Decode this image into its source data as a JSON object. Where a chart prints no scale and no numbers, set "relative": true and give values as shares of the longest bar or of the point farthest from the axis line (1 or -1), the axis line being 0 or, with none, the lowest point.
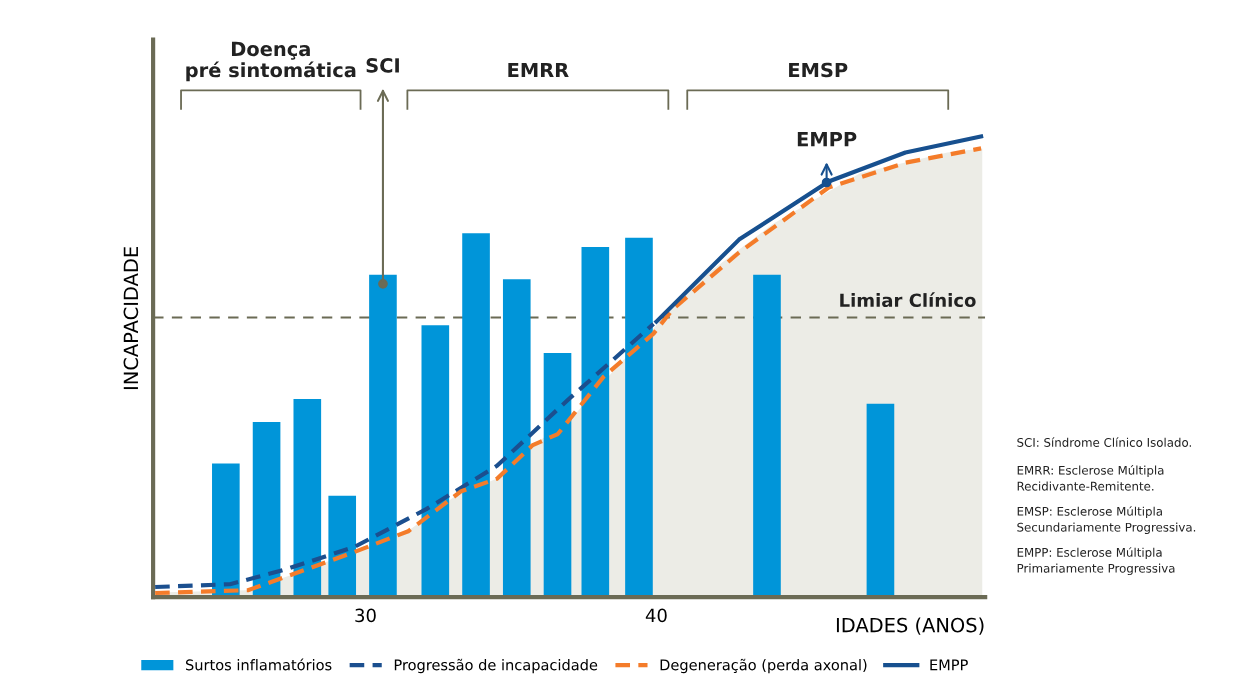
{
  "chart_data": {
    "type": "bar",
    "relative": true,
    "xlabel": "IDADES (ANOS)",
    "ylabel": "INCAPACIDADE",
    "xlim": [
      22.7,
      51.3
    ],
    "xticks": [
      30,
      40
    ],
    "legend": "bottom",
    "series": [
      {
        "name": "Surtos inflamatórios",
        "color": "#0095d9",
        "x": [
          25.2,
          26.6,
          28.0,
          29.2,
          30.6,
          32.4,
          33.8,
          35.2,
          36.6,
          37.9,
          39.4,
          43.8,
          47.7
        ],
        "values": [
          0.29,
          0.38,
          0.43,
          0.22,
          0.7,
          0.59,
          0.79,
          0.69,
          0.53,
          0.76,
          0.78,
          0.7,
          0.42
        ]
      },
      {
        "type": "line",
        "name": "Progressão de incapacidade",
        "color": "#1b4f8f",
        "line_style": "dashed",
        "x": [
          22.77,
          25.34,
          27.19,
          29.62,
          32.09,
          34.52,
          36.99,
          39.9
        ],
        "values": [
          0.022,
          0.028,
          0.059,
          0.109,
          0.191,
          0.285,
          0.43,
          0.593
        ]
      },
      {
        "type": "line",
        "name": "Degeneração (perda axonal)",
        "color": "#f47c2a",
        "line_style": "dashed",
        "x": [
          22.77,
          25.96,
          27.43,
          29.62,
          31.47,
          33.29,
          34.52,
          35.75,
          36.61,
          38.18,
          39.9,
          40.55,
          42.84,
          45.92,
          48.56,
          51.16
        ],
        "values": [
          0.009,
          0.015,
          0.048,
          0.098,
          0.143,
          0.23,
          0.257,
          0.33,
          0.354,
          0.478,
          0.572,
          0.624,
          0.748,
          0.889,
          0.943,
          0.974
        ]
      },
      {
        "type": "line",
        "name": "EMPP",
        "color": "#17508f",
        "line_style": "solid",
        "x": [
          40.0,
          42.84,
          45.92,
          48.56,
          51.16
        ],
        "values": [
          0.598,
          0.776,
          0.902,
          0.965,
          1.0
        ]
      },
      {
        "type": "area",
        "color": "#ecece6",
        "x": [
          22.8,
          25.9,
          27.3,
          28.6,
          29.9,
          31.5,
          33.1,
          34.5,
          35.9,
          37.25,
          38.65,
          41.5,
          44.0,
          47.0,
          50.0,
          51.2
        ],
        "values": [
          0.01,
          0.015,
          0.045,
          0.075,
          0.105,
          0.145,
          0.22,
          0.257,
          0.335,
          0.4,
          0.5,
          0.69,
          0.81,
          0.92,
          0.965,
          0.974
        ]
      }
    ],
    "ref_lines": [
      {
        "axis": "y",
        "value": 0.607,
        "label": "Limiar Clínico",
        "color": "#6b6b55",
        "line_style": "dashed"
      }
    ],
    "annotations": [
      "Doença\npré sintomática",
      {
        "text": "SCI",
        "x": 30.6,
        "y": 0.68
      },
      "EMRR",
      "EMSP",
      {
        "text": "EMPP",
        "x": 45.85,
        "y": 0.9
      },
      "SCI: Síndrome Clínico Isolado.",
      "EMRR: Esclerose Múltipla\nRecidivante-Remitente.",
      "EMSP: Esclerose Múltipla\nSecundariamente Progressiva.",
      "EMPP: Esclerose Múltipla\nPrimariamente Progressiva"
    ]
  }
}
